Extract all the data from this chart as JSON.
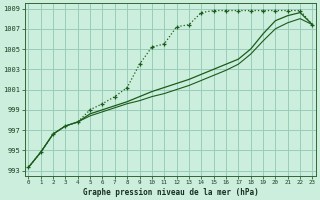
{
  "title": "Graphe pression niveau de la mer (hPa)",
  "background_color": "#cceedd",
  "grid_color": "#99ccbb",
  "line_color_dark": "#1a5c1a",
  "xlim": [
    0,
    23
  ],
  "ylim": [
    993,
    1009
  ],
  "xticks": [
    0,
    1,
    2,
    3,
    4,
    5,
    6,
    7,
    8,
    9,
    10,
    11,
    12,
    13,
    14,
    15,
    16,
    17,
    18,
    19,
    20,
    21,
    22,
    23
  ],
  "yticks": [
    993,
    995,
    997,
    999,
    1001,
    1003,
    1005,
    1007,
    1009
  ],
  "series_top": [
    993.3,
    994.8,
    996.6,
    997.4,
    997.8,
    999.0,
    999.6,
    1000.3,
    1001.2,
    1003.5,
    1005.2,
    1005.5,
    1007.2,
    1007.4,
    1008.6,
    1008.8,
    1008.8,
    1008.8,
    1008.8,
    1008.8,
    1008.8,
    1008.8,
    1008.8,
    1007.4
  ],
  "series_mid": [
    993.3,
    994.8,
    996.6,
    997.4,
    997.8,
    998.6,
    999.0,
    999.4,
    999.8,
    1000.3,
    1000.8,
    1001.2,
    1001.6,
    1002.0,
    1002.5,
    1003.0,
    1003.5,
    1004.0,
    1005.0,
    1006.5,
    1007.8,
    1008.3,
    1008.6,
    1007.4
  ],
  "series_low": [
    993.3,
    994.8,
    996.6,
    997.4,
    997.8,
    998.4,
    998.8,
    999.2,
    999.6,
    999.9,
    1000.3,
    1000.6,
    1001.0,
    1001.4,
    1001.9,
    1002.4,
    1002.9,
    1003.5,
    1004.5,
    1005.8,
    1007.0,
    1007.6,
    1008.0,
    1007.4
  ]
}
